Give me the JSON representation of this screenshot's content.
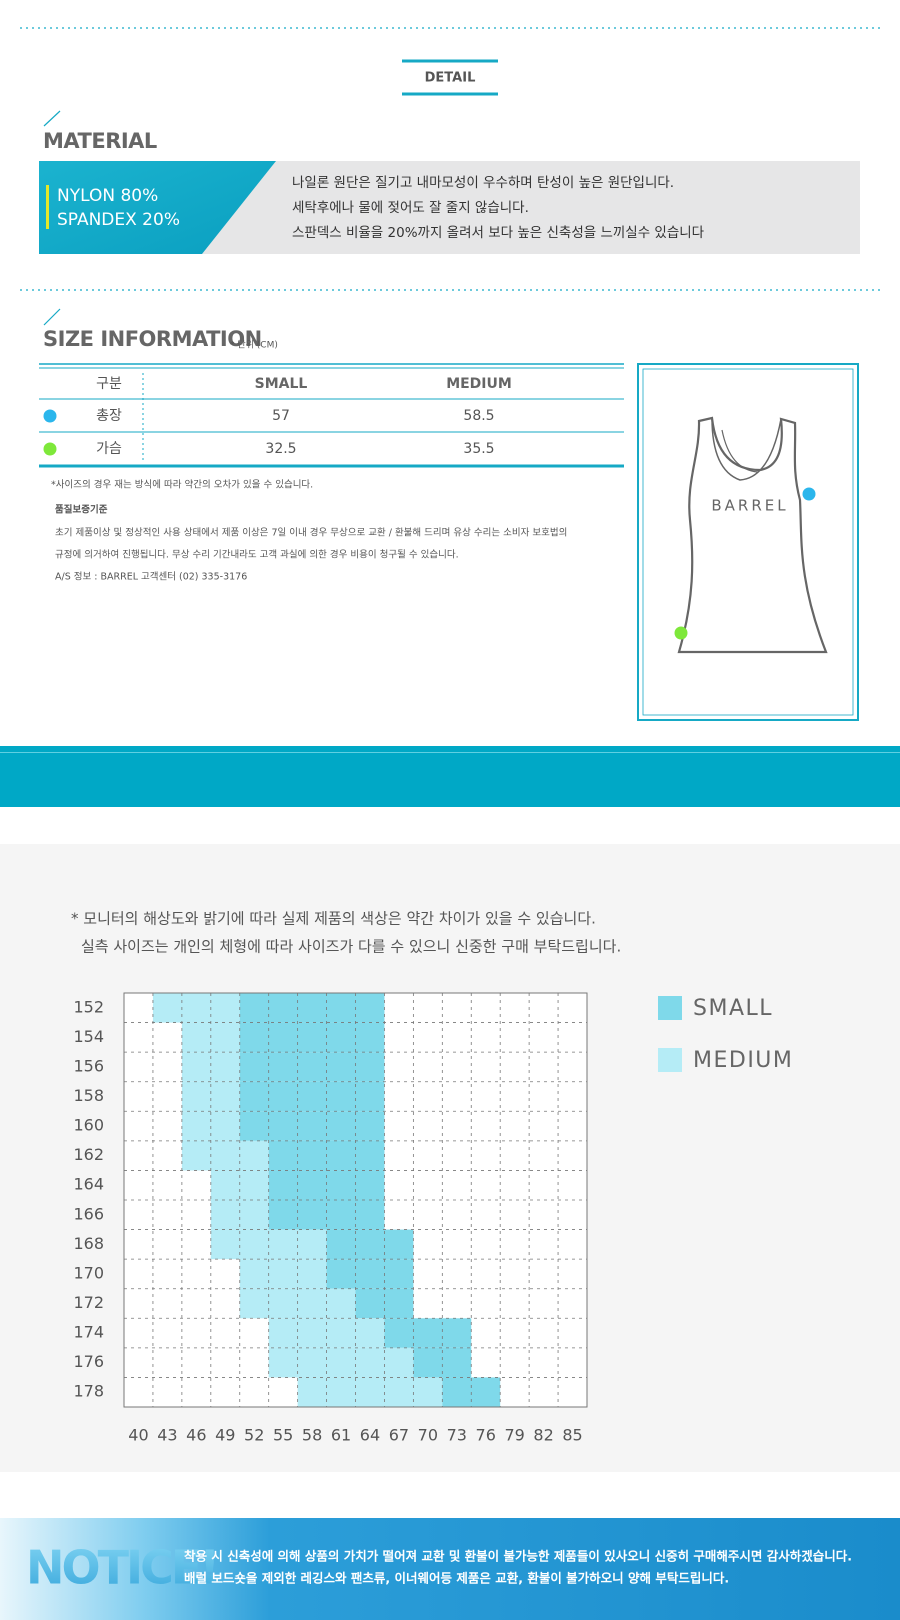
{
  "header": {
    "title": "DETAIL"
  },
  "material": {
    "title": "MATERIAL",
    "composition": [
      "NYLON 80%",
      "SPANDEX 20%"
    ],
    "description": [
      "나일론 원단은 질기고 내마모성이 우수하며 탄성이 높은 원단입니다.",
      "세탁후에나 물에 젖어도 잘 줄지 않습니다.",
      "스판덱스 비율을 20%까지 올려서 보다 높은 신축성을 느끼실수 있습니다"
    ]
  },
  "size_info": {
    "title": "SIZE INFORMATION",
    "unit": "* 단위 (CM)",
    "table": {
      "headers": [
        "구분",
        "SMALL",
        "MEDIUM"
      ],
      "rows": [
        [
          "총장",
          57,
          58.5
        ],
        [
          "가슴",
          32.5,
          35.5
        ]
      ]
    },
    "note": "*사이즈의 경우 재는 방식에 따라 약간의 오차가 있을 수 있습니다.",
    "quality": {
      "title": "품질보증기준",
      "lines": [
        "초기 제품이상 및 정상적인 사용 상태에서 제품 이상은 7일 이내 경우 무상으로 교환 / 환불해 드리며 유상 수리는 소비자 보호법의",
        "규정에 의거하여 진행됩니다. 무상 수리 기간내라도 고객 과실에 의한 경우 비용이 청구될 수 있습니다.",
        "A/S 정보 : BARREL 고객센터 (02) 335-3176"
      ]
    },
    "figure_label": "BARREL"
  },
  "fit_guide": {
    "notes": [
      "* 모니터의 해상도와 밝기에 따라 실제 제품의 색상은 약간 차이가 있을 수 있습니다.",
      "실측 사이즈는 개인의 체형에 따라 사이즈가 다를 수 있으니 신중한 구매 부탁드립니다."
    ],
    "weights": [
      40,
      43,
      46,
      49,
      52,
      55,
      58,
      61,
      64,
      67,
      70,
      73,
      76,
      79,
      82,
      85
    ],
    "legend": [
      {
        "name": "SMALL",
        "color": "#7fd9ea"
      },
      {
        "name": "MEDIUM",
        "color": "#b5ecf6"
      }
    ],
    "rows": [
      {
        "height": 152,
        "small": [
          52,
          64
        ],
        "medium": [
          43,
          49
        ]
      },
      {
        "height": 154,
        "small": [
          52,
          64
        ],
        "medium": [
          46,
          49
        ]
      },
      {
        "height": 156,
        "small": [
          52,
          64
        ],
        "medium": [
          46,
          49
        ]
      },
      {
        "height": 158,
        "small": [
          52,
          64
        ],
        "medium": [
          46,
          49
        ]
      },
      {
        "height": 160,
        "small": [
          52,
          64
        ],
        "medium": [
          46,
          49
        ]
      },
      {
        "height": 162,
        "small": [
          55,
          64
        ],
        "medium": [
          46,
          52
        ]
      },
      {
        "height": 164,
        "small": [
          55,
          64
        ],
        "medium": [
          49,
          52
        ]
      },
      {
        "height": 166,
        "small": [
          55,
          64
        ],
        "medium": [
          49,
          52
        ]
      },
      {
        "height": 168,
        "small": [
          61,
          67
        ],
        "medium": [
          49,
          58
        ]
      },
      {
        "height": 170,
        "small": [
          61,
          67
        ],
        "medium": [
          52,
          58
        ]
      },
      {
        "height": 172,
        "small": [
          64,
          67
        ],
        "medium": [
          52,
          61
        ]
      },
      {
        "height": 174,
        "small": [
          67,
          73
        ],
        "medium": [
          55,
          64
        ]
      },
      {
        "height": 176,
        "small": [
          70,
          73
        ],
        "medium": [
          55,
          67
        ]
      },
      {
        "height": 178,
        "small": [
          73,
          76
        ],
        "medium": [
          58,
          70
        ]
      }
    ]
  },
  "notice": {
    "title": "NOTICE!",
    "lines": [
      "착용 시 신축성에 의해 상품의 가치가 떨어져 교환 및 환불이 불가능한 제품들이 있사오니 신중히 구매해주시면 감사하겠습니다.",
      "배럴 보드숏을 제외한 레깅스와 팬츠류, 이너웨어등 제품은 교환, 환불이 불가하오니 양해 부탁드립니다."
    ]
  }
}
